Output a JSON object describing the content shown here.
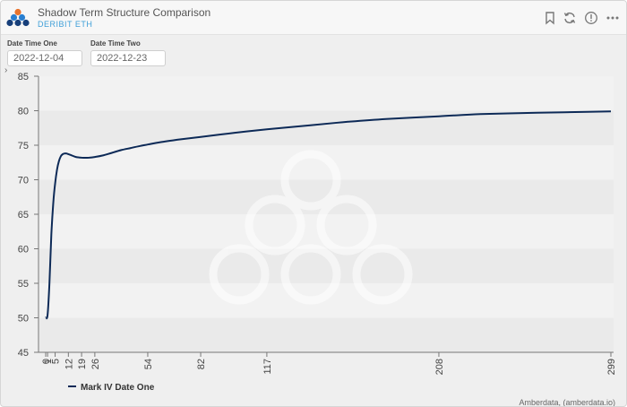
{
  "header": {
    "title": "Shadow Term Structure Comparison",
    "subtitle": "DERIBIT ETH",
    "icons": [
      "bookmark-icon",
      "refresh-icon",
      "info-icon",
      "more-icon"
    ]
  },
  "controls": {
    "date_one_label": "Date Time One",
    "date_one_value": "2022-12-04",
    "date_two_label": "Date Time Two",
    "date_two_value": "2022-12-23"
  },
  "colors": {
    "line": "#0d2a57",
    "accent": "#3f9fd8",
    "background": "#efefef"
  },
  "chart_data": {
    "type": "line",
    "title": "",
    "xlabel": "",
    "ylabel": "",
    "xlim": [
      0,
      299
    ],
    "ylim": [
      45,
      85
    ],
    "x_ticks": [
      0,
      1,
      5,
      12,
      19,
      26,
      54,
      82,
      117,
      208,
      299
    ],
    "x_tick_labels": [
      "0",
      "1",
      "5",
      "12",
      "19",
      "26",
      "54",
      "82",
      "117",
      "208",
      "299"
    ],
    "y_ticks": [
      45,
      50,
      55,
      60,
      65,
      70,
      75,
      80,
      85
    ],
    "y_tick_labels": [
      "45",
      "50",
      "55",
      "60",
      "65",
      "70",
      "75",
      "80",
      "85"
    ],
    "grid": "horizontal bands",
    "legend": "bottom-left",
    "series": [
      {
        "name": "Mark IV Date One",
        "x": [
          0,
          1,
          2,
          3,
          4,
          5,
          6,
          7,
          8,
          9,
          10,
          11,
          12,
          14,
          16,
          19,
          23,
          26,
          30,
          35,
          40,
          45,
          50,
          54,
          60,
          70,
          82,
          100,
          117,
          140,
          160,
          180,
          208,
          230,
          260,
          280,
          299
        ],
        "y": [
          50.0,
          50.4,
          55.0,
          62.0,
          66.5,
          69.5,
          71.5,
          72.7,
          73.4,
          73.7,
          73.8,
          73.8,
          73.7,
          73.5,
          73.3,
          73.2,
          73.2,
          73.3,
          73.5,
          73.9,
          74.3,
          74.6,
          74.9,
          75.1,
          75.4,
          75.8,
          76.2,
          76.8,
          77.3,
          77.9,
          78.4,
          78.8,
          79.2,
          79.5,
          79.7,
          79.8,
          79.9
        ]
      }
    ]
  },
  "footer": {
    "credit": "Amberdata, (amberdata.io)"
  }
}
